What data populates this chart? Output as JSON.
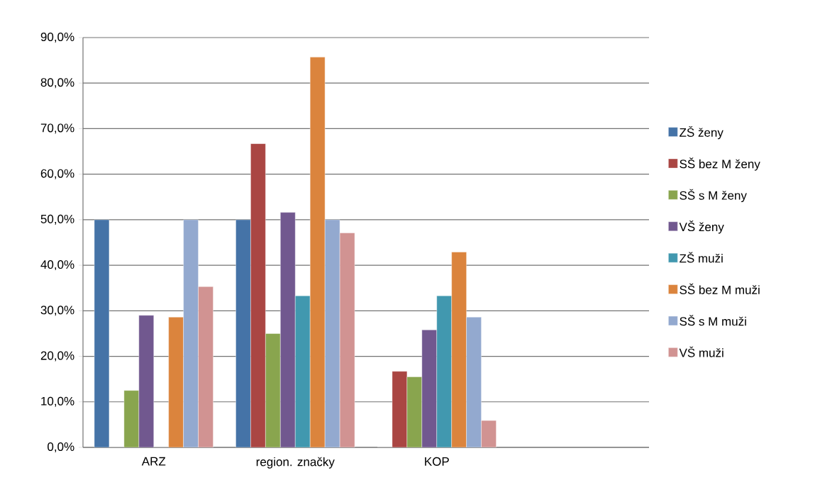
{
  "chart_data": {
    "type": "bar",
    "categories": [
      "ARZ",
      "region. značky",
      "KOP",
      null
    ],
    "series": [
      {
        "name": "ZŠ ženy",
        "color": "#4573a7",
        "values": [
          50.0,
          50.0,
          0,
          null
        ]
      },
      {
        "name": "SŠ bez M ženy",
        "color": "#aa4643",
        "values": [
          0,
          66.7,
          16.7,
          null
        ]
      },
      {
        "name": "SŠ s M ženy",
        "color": "#89a54e",
        "values": [
          12.5,
          25.0,
          15.5,
          null
        ]
      },
      {
        "name": "VŠ ženy",
        "color": "#71588f",
        "values": [
          29.0,
          51.6,
          25.8,
          null
        ]
      },
      {
        "name": "ZŠ muži",
        "color": "#4198af",
        "values": [
          0,
          33.3,
          33.3,
          null
        ]
      },
      {
        "name": "SŠ bez M muži",
        "color": "#db843d",
        "values": [
          28.6,
          85.7,
          42.9,
          null
        ]
      },
      {
        "name": "SŠ s M muži",
        "color": "#93a9cf",
        "values": [
          50.0,
          50.0,
          28.6,
          null
        ]
      },
      {
        "name": "VŠ muži",
        "color": "#d19392",
        "values": [
          35.3,
          47.1,
          5.9,
          null
        ]
      }
    ],
    "ylim": [
      0,
      90
    ],
    "yticks": [
      {
        "value": 0,
        "label": "0,0%"
      },
      {
        "value": 10,
        "label": "10,0%"
      },
      {
        "value": 20,
        "label": "20,0%"
      },
      {
        "value": 30,
        "label": "30,0%"
      },
      {
        "value": 40,
        "label": "40,0%"
      },
      {
        "value": 50,
        "label": "50,0%"
      },
      {
        "value": 60,
        "label": "60,0%"
      },
      {
        "value": 70,
        "label": "70,0%"
      },
      {
        "value": 80,
        "label": "80,0%"
      },
      {
        "value": 90,
        "label": "90,0%"
      }
    ],
    "grid": "y",
    "legend": "right"
  }
}
